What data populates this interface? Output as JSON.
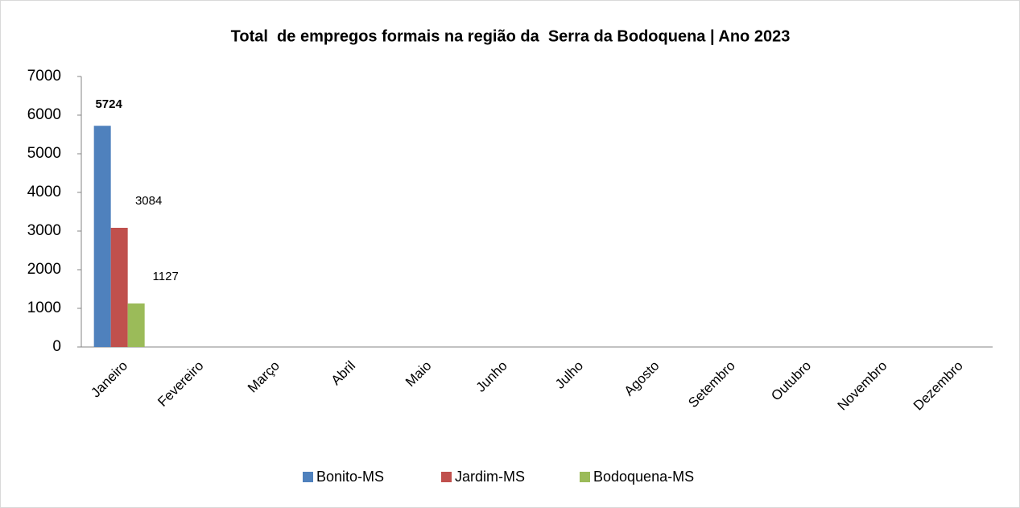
{
  "chart_data": {
    "type": "bar",
    "title": "Total  de empregos formais na região da  Serra da Bodoquena | Ano 2023",
    "categories": [
      "Janeiro",
      "Fevereiro",
      "Março",
      "Abril",
      "Maio",
      "Junho",
      "Julho",
      "Agosto",
      "Setembro",
      "Outubro",
      "Novembro",
      "Dezembro"
    ],
    "series": [
      {
        "name": "Bonito-MS",
        "color": "#4f81bd",
        "values": [
          5724,
          null,
          null,
          null,
          null,
          null,
          null,
          null,
          null,
          null,
          null,
          null
        ]
      },
      {
        "name": "Jardim-MS",
        "color": "#c0504d",
        "values": [
          3084,
          null,
          null,
          null,
          null,
          null,
          null,
          null,
          null,
          null,
          null,
          null
        ]
      },
      {
        "name": "Bodoquena-MS",
        "color": "#9bbb59",
        "values": [
          1127,
          null,
          null,
          null,
          null,
          null,
          null,
          null,
          null,
          null,
          null,
          null
        ]
      }
    ],
    "ylim": [
      0,
      7000
    ],
    "yticks": [
      0,
      1000,
      2000,
      3000,
      4000,
      5000,
      6000,
      7000
    ],
    "legend": "bottom"
  }
}
